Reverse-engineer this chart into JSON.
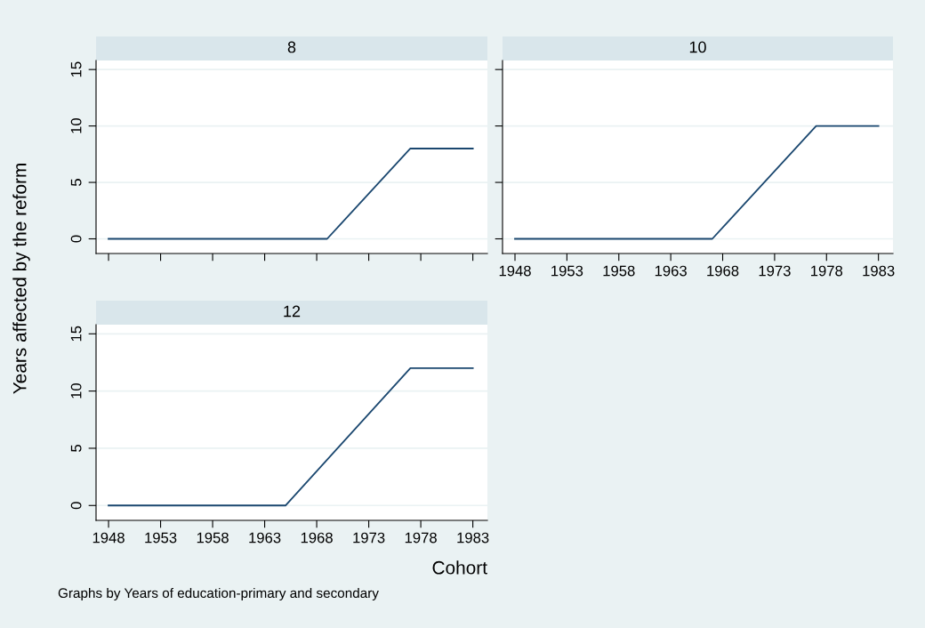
{
  "chart_data": [
    {
      "type": "line",
      "title": "8",
      "ylabel": "Years affected by the reform",
      "x": [
        1948,
        1969,
        1977,
        1983
      ],
      "series": [
        {
          "color": "#1a476f",
          "values": [
            0,
            0,
            8,
            8
          ]
        }
      ],
      "xlim": [
        1946.8,
        1984.4
      ],
      "ylim": [
        -1.3,
        15.8
      ],
      "xticks": [
        1948,
        1953,
        1958,
        1963,
        1968,
        1973,
        1978,
        1983
      ],
      "yticks": [
        0,
        5,
        10,
        15
      ],
      "grid": "y",
      "tick_labels": "y"
    },
    {
      "type": "line",
      "title": "10",
      "x": [
        1948,
        1967,
        1977,
        1983
      ],
      "series": [
        {
          "color": "#1a476f",
          "values": [
            0,
            0,
            10,
            10
          ]
        }
      ],
      "xlim": [
        1946.8,
        1984.4
      ],
      "ylim": [
        -1.3,
        15.8
      ],
      "xticks": [
        1948,
        1953,
        1958,
        1963,
        1968,
        1973,
        1978,
        1983
      ],
      "yticks": [
        0,
        5,
        10,
        15
      ],
      "grid": "y",
      "tick_labels": "x"
    },
    {
      "type": "line",
      "title": "12",
      "xlabel": "Cohort",
      "x": [
        1948,
        1965,
        1977,
        1983
      ],
      "series": [
        {
          "color": "#1a476f",
          "values": [
            0,
            0,
            12,
            12
          ]
        }
      ],
      "xlim": [
        1946.8,
        1984.4
      ],
      "ylim": [
        -1.3,
        15.8
      ],
      "xticks": [
        1948,
        1953,
        1958,
        1963,
        1968,
        1973,
        1978,
        1983
      ],
      "yticks": [
        0,
        5,
        10,
        15
      ],
      "grid": "y",
      "annotations": [
        "Graphs by Years of education-primary and secondary"
      ]
    }
  ]
}
